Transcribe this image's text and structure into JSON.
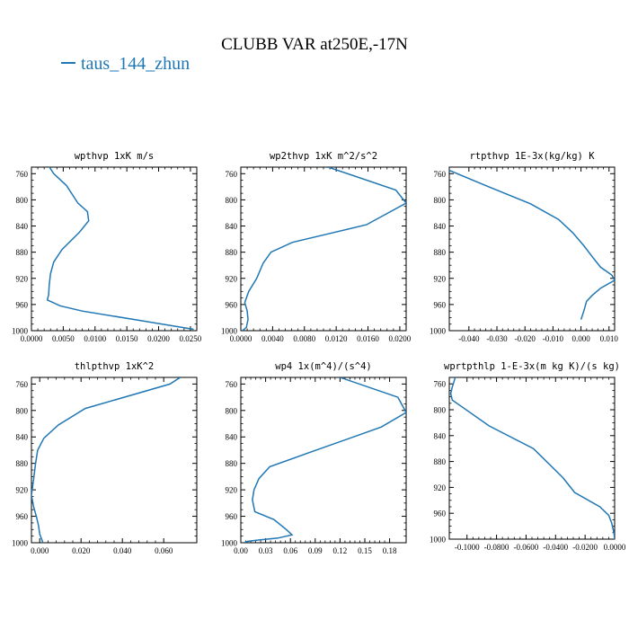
{
  "figure": {
    "title": "CLUBB VAR at250E,-17N",
    "line_color": "#1f77b4",
    "legend": [
      {
        "name": "taus_144_zhun",
        "color": "#1f77b4"
      }
    ]
  },
  "chart_data": [
    {
      "type": "line",
      "title": "wpthvp  1xK m/s",
      "xlim": [
        0,
        0.026
      ],
      "ylim": [
        1000,
        750
      ],
      "xticks": [
        0,
        0.005,
        0.01,
        0.015,
        0.02,
        0.025
      ],
      "xtick_labels": [
        "0.0000",
        "0.0050",
        "0.0100",
        "0.0150",
        "0.0200",
        "0.0250"
      ],
      "yticks": [
        760,
        800,
        840,
        880,
        920,
        960,
        1000
      ],
      "series": [
        {
          "x": [
            0.0025,
            0.0035,
            0.0055,
            0.0073,
            0.0088,
            0.009,
            0.0075,
            0.0048,
            0.0035,
            0.003,
            0.0028,
            0.0027,
            0.0025,
            0.0045,
            0.008,
            0.0175,
            0.0255
          ],
          "y": [
            745,
            760,
            778,
            805,
            818,
            832,
            850,
            876,
            895,
            913,
            930,
            945,
            953,
            962,
            970,
            985,
            998
          ]
        }
      ]
    },
    {
      "type": "line",
      "title": "wp2thvp  1xK m^2/s^2",
      "xlim": [
        0,
        0.0208
      ],
      "ylim": [
        1000,
        750
      ],
      "xticks": [
        0,
        0.004,
        0.008,
        0.012,
        0.016,
        0.02
      ],
      "xtick_labels": [
        "0.0000",
        "0.0040",
        "0.0080",
        "0.0120",
        "0.0160",
        "0.0200"
      ],
      "yticks": [
        760,
        800,
        840,
        880,
        920,
        960,
        1000
      ],
      "series": [
        {
          "x": [
            0.011,
            0.0195,
            0.0208,
            0.0158,
            0.0065,
            0.0038,
            0.0028,
            0.002,
            0.001,
            0.0005,
            0.0008,
            0.0009,
            0.0007,
            0.0002
          ],
          "y": [
            750,
            785,
            805,
            838,
            865,
            880,
            897,
            920,
            940,
            957,
            970,
            983,
            995,
            1000
          ]
        }
      ]
    },
    {
      "type": "line",
      "title": "rtpthvp  1E-3x(kg/kg) K",
      "xlim": [
        -0.047,
        0.012
      ],
      "ylim": [
        1000,
        750
      ],
      "xticks": [
        -0.04,
        -0.03,
        -0.02,
        -0.01,
        0,
        0.01
      ],
      "xtick_labels": [
        "-0.040",
        "-0.030",
        "-0.020",
        "-0.010",
        "0.000",
        "0.010"
      ],
      "yticks": [
        760,
        800,
        840,
        880,
        920,
        960,
        1000
      ],
      "series": [
        {
          "x": [
            -0.047,
            -0.033,
            -0.018,
            -0.008,
            -0.003,
            0.001,
            0.004,
            0.007,
            0.011,
            0.012,
            0.007,
            0.004,
            0.002,
            0.001,
            0.0
          ],
          "y": [
            755,
            780,
            806,
            830,
            850,
            870,
            887,
            903,
            915,
            923,
            935,
            946,
            955,
            970,
            983
          ]
        }
      ]
    },
    {
      "type": "line",
      "title": "thlpthvp  1xK^2",
      "xlim": [
        -0.004,
        0.076
      ],
      "ylim": [
        1000,
        750
      ],
      "xticks": [
        0,
        0.02,
        0.04,
        0.06
      ],
      "xtick_labels": [
        "0.000",
        "0.020",
        "0.040",
        "0.060"
      ],
      "yticks": [
        760,
        800,
        840,
        880,
        920,
        960,
        1000
      ],
      "series": [
        {
          "x": [
            0.068,
            0.063,
            0.022,
            0.009,
            0.002,
            -0.001,
            -0.002,
            -0.003,
            -0.004,
            -0.003,
            -0.0015,
            -0.0005,
            0.0,
            0.001,
            0.0015
          ],
          "y": [
            750,
            760,
            797,
            822,
            842,
            860,
            880,
            905,
            928,
            945,
            962,
            975,
            987,
            995,
            1000
          ]
        }
      ]
    },
    {
      "type": "line",
      "title": "wp4  1x(m^4)/(s^4)",
      "xlim": [
        0,
        0.2
      ],
      "ylim": [
        1000,
        750
      ],
      "xticks": [
        0,
        0.03,
        0.06,
        0.09,
        0.12,
        0.15,
        0.18
      ],
      "xtick_labels": [
        "0.00",
        "0.03",
        "0.06",
        "0.09",
        "0.12",
        "0.15",
        "0.18"
      ],
      "yticks": [
        760,
        800,
        840,
        880,
        920,
        960,
        1000
      ],
      "series": [
        {
          "x": [
            0.12,
            0.19,
            0.2,
            0.17,
            0.08,
            0.035,
            0.022,
            0.016,
            0.014,
            0.017,
            0.04,
            0.055,
            0.062,
            0.045,
            0.02,
            0.008,
            0.004
          ],
          "y": [
            750,
            780,
            803,
            825,
            865,
            885,
            903,
            920,
            935,
            953,
            965,
            980,
            988,
            993,
            996,
            998,
            1000
          ]
        }
      ]
    },
    {
      "type": "line",
      "title": "wprtpthlp  1-E-3x(m kg K)/(s kg)",
      "xlim": [
        -0.112,
        0.0
      ],
      "ylim": [
        1000,
        750
      ],
      "xticks": [
        -0.1,
        -0.08,
        -0.06,
        -0.04,
        -0.02,
        0
      ],
      "xtick_labels": [
        "-0.1000",
        "-0.0800",
        "-0.0600",
        "-0.0400",
        "-0.0200",
        "0.0000"
      ],
      "yticks": [
        760,
        800,
        840,
        880,
        920,
        960,
        1000
      ],
      "series": [
        {
          "x": [
            -0.108,
            -0.109,
            -0.11,
            -0.111,
            -0.1105,
            -0.11,
            -0.085,
            -0.055,
            -0.035,
            -0.027,
            -0.01,
            -0.004,
            -0.002,
            -0.0005,
            0.0
          ],
          "y": [
            750,
            758,
            765,
            775,
            780,
            785,
            825,
            860,
            905,
            928,
            950,
            963,
            975,
            990,
            1000
          ]
        }
      ]
    }
  ]
}
